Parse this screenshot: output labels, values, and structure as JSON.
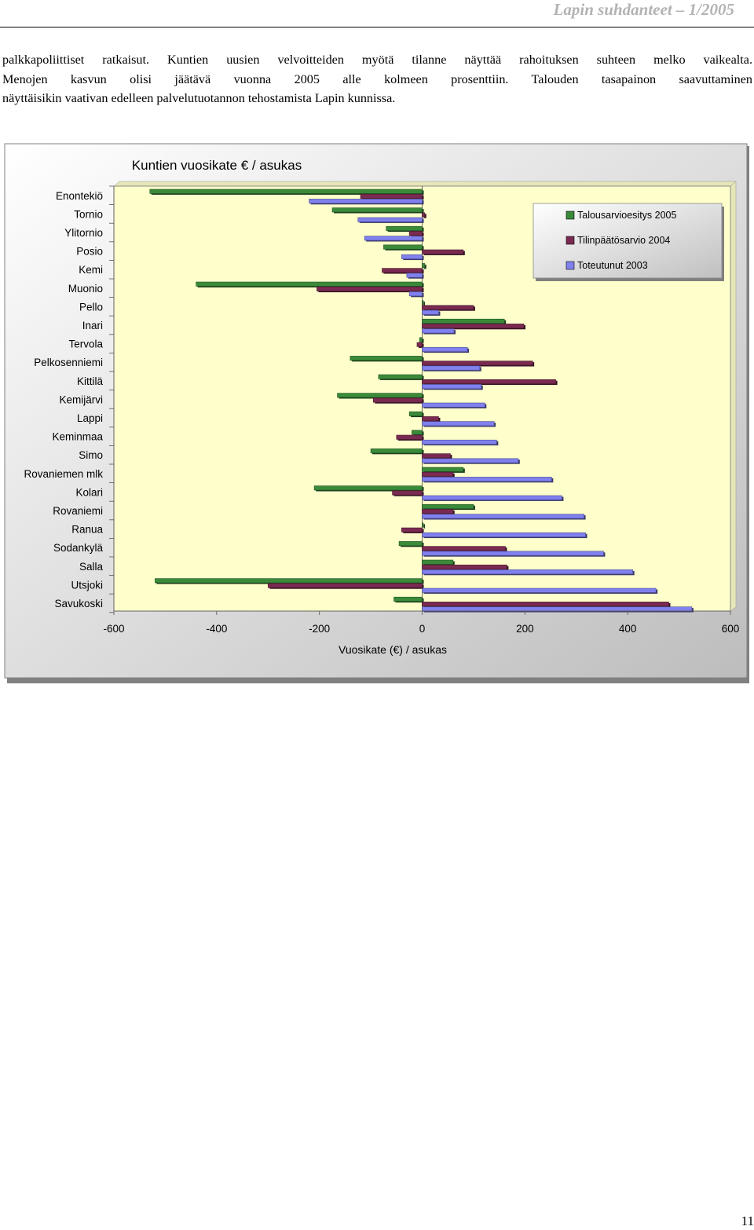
{
  "header": {
    "running_title": "Lapin suhdanteet – 1/2005"
  },
  "body_text": {
    "lines": [
      "palkkapoliittiset ratkaisut. Kuntien uusien velvoitteiden myötä tilanne näyttää rahoituksen suhteen melko vaikealta.",
      "Menojen kasvun olisi jäätävä vuonna 2005 alle kolmeen prosenttiin. Talouden tasapainon saavuttaminen",
      "näyttäisikin vaativan edelleen palvelutuotannon tehostamista Lapin kunnissa."
    ]
  },
  "chart_data": {
    "type": "bar",
    "orientation": "horizontal",
    "title": "Kuntien vuosikate € / asukas",
    "xlabel": "Vuosikate  (€) / asukas",
    "ylabel": "",
    "xlim": [
      -600,
      600
    ],
    "x_ticks": [
      -600,
      -400,
      -200,
      0,
      200,
      400,
      600
    ],
    "categories": [
      "Enontekiö",
      "Tornio",
      "Ylitornio",
      "Posio",
      "Kemi",
      "Muonio",
      "Pello",
      "Inari",
      "Tervola",
      "Pelkosenniemi",
      "Kittilä",
      "Kemijärvi",
      "Lappi",
      "Keminmaa",
      "Simo",
      "Rovaniemen mlk",
      "Kolari",
      "Rovaniemi",
      "Ranua",
      "Sodankylä",
      "Salla",
      "Utsjoki",
      "Savukoski"
    ],
    "series": [
      {
        "name": "Talousarvioesitys 2005",
        "color": "#3a8a3a",
        "values": [
          -530,
          -175,
          -70,
          -75,
          5,
          -440,
          0,
          160,
          -5,
          -140,
          -85,
          -165,
          -25,
          -20,
          -100,
          80,
          -210,
          100,
          0,
          -45,
          60,
          -520,
          -55
        ]
      },
      {
        "name": "Tilinpäätösarvio 2004",
        "color": "#7a2a50",
        "values": [
          -120,
          5,
          -25,
          80,
          -78,
          -205,
          100,
          198,
          -10,
          215,
          260,
          -95,
          32,
          -50,
          55,
          60,
          -58,
          60,
          -40,
          162,
          165,
          -300,
          480
        ]
      },
      {
        "name": "Toteutunut 2003",
        "color": "#8080ee",
        "values": [
          -220,
          -125,
          -112,
          -40,
          -30,
          -25,
          32,
          62,
          88,
          112,
          115,
          122,
          140,
          145,
          187,
          252,
          272,
          315,
          318,
          353,
          410,
          455,
          525
        ]
      }
    ],
    "legend_position": "top-right",
    "grid": false,
    "plot_background": "#ffffcc",
    "frame_background": "#c8c8c8"
  },
  "footer": {
    "page_number": "11"
  }
}
